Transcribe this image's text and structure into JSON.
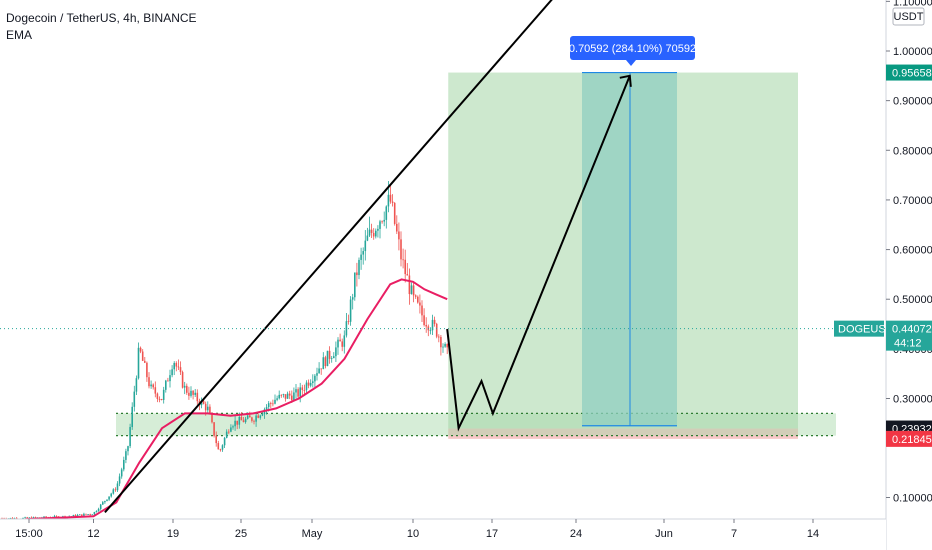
{
  "header": {
    "title": "Dogecoin / TetherUS, 4h, BINANCE",
    "indicator": "EMA"
  },
  "currency_badge": "USDT",
  "countdown": "44:12",
  "colors": {
    "up": "#26a69a",
    "down": "#ef5350",
    "ema": "#e91e63",
    "target_zone": "#c8e6c9",
    "target_teal": "#8fcfc0",
    "stop_zone": "#f8c7c7",
    "support_zone": "#a5d6a7",
    "price_tag": "#26a69a",
    "target_tag": "#089981",
    "stop_tag": "#f23645",
    "entry_tag": "#131722",
    "measure_tip": "#2962ff"
  },
  "chart_data": {
    "type": "candlestick",
    "symbol": "DOGEUSDT",
    "interval": "4h",
    "exchange": "BINANCE",
    "ylabel": "USDT",
    "ylim": [
      0.04,
      1.1
    ],
    "y_ticks": [
      "0.10000",
      "0.30000",
      "0.40000",
      "0.50000",
      "0.60000",
      "0.70000",
      "0.80000",
      "0.90000",
      "1.00000",
      "1.10000"
    ],
    "x_ticks": [
      "15:00",
      "12",
      "19",
      "25",
      "May",
      "10",
      "17",
      "24",
      "Jun",
      "7",
      "14"
    ],
    "price_path": [
      [
        "Apr 6",
        0.058
      ],
      [
        "Apr 10",
        0.062
      ],
      [
        "Apr 12",
        0.068
      ],
      [
        "Apr 14",
        0.12
      ],
      [
        "Apr 15",
        0.2
      ],
      [
        "Apr 16",
        0.4
      ],
      [
        "Apr 17",
        0.32
      ],
      [
        "Apr 18",
        0.3
      ],
      [
        "Apr 19",
        0.38
      ],
      [
        "Apr 20",
        0.32
      ],
      [
        "Apr 22",
        0.28
      ],
      [
        "Apr 23",
        0.19
      ],
      [
        "Apr 24",
        0.25
      ],
      [
        "Apr 26",
        0.26
      ],
      [
        "Apr 28",
        0.3
      ],
      [
        "Apr 30",
        0.31
      ],
      [
        "May 2",
        0.37
      ],
      [
        "May 4",
        0.42
      ],
      [
        "May 5",
        0.55
      ],
      [
        "May 6",
        0.62
      ],
      [
        "May 7",
        0.66
      ],
      [
        "May 8",
        0.7
      ],
      [
        "May 9",
        0.58
      ],
      [
        "May 10",
        0.5
      ],
      [
        "May 11",
        0.46
      ],
      [
        "May 12",
        0.44
      ],
      [
        "May 13",
        0.39
      ]
    ],
    "ema_path": [
      [
        "Apr 6",
        0.056
      ],
      [
        "Apr 12",
        0.062
      ],
      [
        "Apr 14",
        0.09
      ],
      [
        "Apr 16",
        0.17
      ],
      [
        "Apr 18",
        0.24
      ],
      [
        "Apr 20",
        0.27
      ],
      [
        "Apr 22",
        0.27
      ],
      [
        "Apr 24",
        0.265
      ],
      [
        "Apr 26",
        0.27
      ],
      [
        "Apr 28",
        0.28
      ],
      [
        "Apr 30",
        0.3
      ],
      [
        "May 2",
        0.33
      ],
      [
        "May 4",
        0.38
      ],
      [
        "May 6",
        0.46
      ],
      [
        "May 8",
        0.53
      ],
      [
        "May 9",
        0.54
      ],
      [
        "May 10",
        0.535
      ],
      [
        "May 11",
        0.52
      ],
      [
        "May 12",
        0.51
      ],
      [
        "May 13",
        0.5
      ]
    ],
    "current_price": {
      "label": "DOGEUSDT",
      "value": "0.44072"
    },
    "position": {
      "type": "long",
      "entry": "0.23932",
      "target": "0.95658",
      "stop": "0.21845"
    },
    "measure_label": "0.70592 (284.10%) 70592",
    "support_zone": {
      "low": 0.225,
      "high": 0.27
    },
    "trendline": {
      "from": [
        "Apr 13",
        0.07
      ],
      "to": [
        "May 8",
        0.73
      ]
    },
    "projection_path": [
      [
        "May 13",
        0.44
      ],
      [
        "May 14",
        0.24
      ],
      [
        "May 16",
        0.335
      ],
      [
        "May 17",
        0.27
      ],
      [
        "May 29",
        0.95
      ]
    ],
    "grid": false
  }
}
